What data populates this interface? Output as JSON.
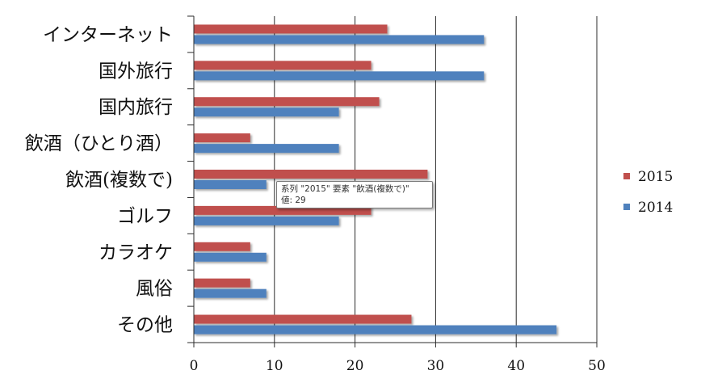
{
  "chart_data": {
    "type": "bar",
    "orientation": "horizontal",
    "categories": [
      "インターネット",
      "国外旅行",
      "国内旅行",
      "飲酒（ひとり酒）",
      "飲酒(複数で)",
      "ゴルフ",
      "カラオケ",
      "風俗",
      "その他"
    ],
    "series": [
      {
        "name": "2015",
        "color": "#c0504d",
        "values": [
          24,
          22,
          23,
          7,
          29,
          22,
          7,
          7,
          27
        ]
      },
      {
        "name": "2014",
        "color": "#4f81bd",
        "values": [
          36,
          36,
          18,
          18,
          9,
          18,
          9,
          9,
          45
        ]
      }
    ],
    "xlim": [
      0,
      50
    ],
    "xticks": [
      0,
      10,
      20,
      30,
      40,
      50
    ],
    "grid": "vertical",
    "legend": "right"
  },
  "tooltip": {
    "line1": "系列 \"2015\" 要素 \"飲酒(複数で)\" ",
    "line2": "値: 29"
  }
}
